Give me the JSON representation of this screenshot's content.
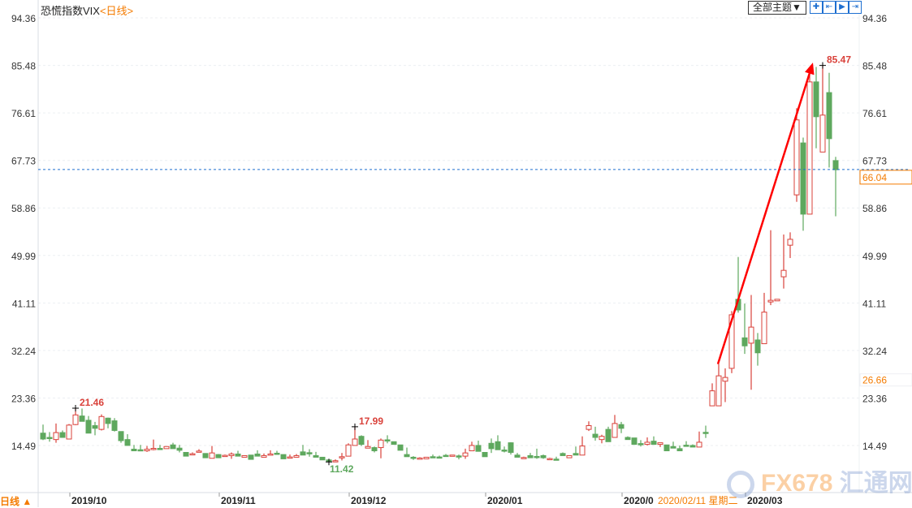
{
  "header": {
    "title": "恐慌指数VIX",
    "period": "<日线>",
    "theme_button": "全部主题▼",
    "tools": [
      {
        "icon": "crosshair-icon"
      },
      {
        "icon": "zoom-range-icon"
      },
      {
        "icon": "play-icon"
      },
      {
        "icon": "exit-icon"
      }
    ]
  },
  "footer": {
    "period_toggle": "日线 ▲",
    "crosshair_date": "2020/02/11 星期二"
  },
  "watermark": {
    "brand": "FX678",
    "name": "汇通网"
  },
  "colors": {
    "up": "#d9413a",
    "down": "#5ea85e",
    "last_price": "#f47b00",
    "dashed_line": "#1e6fd0",
    "arrow": "#ff0000"
  },
  "chart_data": {
    "type": "candlestick",
    "title": "恐慌指数VIX",
    "ylim": [
      11,
      94.36
    ],
    "y_ticks": [
      "94.36",
      "85.48",
      "76.61",
      "67.73",
      "58.86",
      "49.99",
      "41.11",
      "32.24",
      "23.36",
      "14.49"
    ],
    "x_ticks": [
      "2019/10",
      "2019/11",
      "2019/12",
      "2020/01",
      "2020/0",
      "2020/03"
    ],
    "last_price": "66.04",
    "crosshair_price": "26.66",
    "annotations": [
      {
        "label": "21.46",
        "candle": 5,
        "at": "high",
        "color": "#d9413a"
      },
      {
        "label": "17.99",
        "candle": 48,
        "at": "high",
        "color": "#d9413a"
      },
      {
        "label": "11.42",
        "candle": 44,
        "at": "low",
        "color": "#5ea85e"
      },
      {
        "label": "85.47",
        "candle": 120,
        "at": "high",
        "color": "#d9413a"
      }
    ],
    "trend_arrow": {
      "from": {
        "candle": 104,
        "value": 29.7
      },
      "to": {
        "candle": 118.5,
        "value": 86
      }
    },
    "ohlc": [
      [
        16.8,
        18.4,
        15.5,
        15.7
      ],
      [
        16.0,
        17.0,
        15.2,
        15.9
      ],
      [
        15.6,
        18.6,
        15.0,
        16.9
      ],
      [
        16.9,
        17.3,
        16.0,
        16.0
      ],
      [
        15.7,
        18.5,
        15.7,
        18.3
      ],
      [
        18.4,
        21.46,
        18.3,
        20.2
      ],
      [
        20.0,
        21.4,
        19.0,
        19.0
      ],
      [
        19.2,
        20.0,
        16.8,
        16.8
      ],
      [
        18.2,
        18.9,
        16.4,
        17.7
      ],
      [
        17.5,
        20.3,
        17.3,
        19.9
      ],
      [
        19.6,
        19.7,
        17.7,
        18.6
      ],
      [
        19.1,
        19.6,
        17.1,
        17.3
      ],
      [
        17.1,
        17.1,
        15.0,
        15.4
      ],
      [
        15.6,
        16.6,
        14.5,
        14.5
      ],
      [
        13.8,
        14.6,
        13.5,
        13.5
      ],
      [
        13.7,
        14.6,
        13.5,
        13.6
      ],
      [
        13.5,
        14.4,
        13.3,
        13.8
      ],
      [
        13.8,
        15.6,
        13.6,
        13.95
      ],
      [
        13.95,
        14.6,
        13.8,
        13.85
      ],
      [
        13.9,
        14.3,
        13.9,
        14.3
      ],
      [
        14.6,
        15.0,
        13.9,
        13.9
      ],
      [
        14.0,
        14.6,
        13.2,
        13.6
      ],
      [
        13.2,
        13.2,
        12.5,
        12.5
      ],
      [
        12.85,
        13.2,
        12.8,
        12.95
      ],
      [
        13.35,
        13.8,
        13.3,
        13.45
      ],
      [
        13.0,
        13.0,
        12.2,
        12.2
      ],
      [
        12.1,
        14.4,
        12.1,
        13.1
      ],
      [
        12.8,
        12.9,
        12.2,
        12.2
      ],
      [
        12.55,
        12.8,
        12.5,
        12.65
      ],
      [
        12.6,
        13.2,
        12.0,
        12.9
      ],
      [
        12.9,
        13.5,
        12.5,
        12.5
      ],
      [
        12.3,
        12.6,
        12.3,
        12.6
      ],
      [
        12.7,
        12.7,
        11.9,
        11.9
      ],
      [
        12.9,
        13.6,
        12.5,
        12.5
      ],
      [
        12.3,
        13.0,
        12.3,
        12.6
      ],
      [
        12.7,
        13.6,
        12.7,
        12.9
      ],
      [
        13.05,
        13.5,
        12.9,
        12.95
      ],
      [
        12.8,
        12.8,
        12.0,
        12.0
      ],
      [
        12.25,
        12.8,
        12.2,
        12.35
      ],
      [
        12.3,
        12.9,
        12.3,
        12.6
      ],
      [
        13.3,
        14.6,
        12.7,
        12.7
      ],
      [
        13.15,
        13.8,
        12.4,
        13.05
      ],
      [
        12.6,
        13.3,
        12.3,
        12.3
      ],
      [
        12.3,
        12.3,
        11.8,
        11.8
      ],
      [
        11.8,
        11.8,
        11.42,
        11.5
      ],
      [
        11.55,
        11.9,
        11.5,
        11.65
      ],
      [
        12.2,
        13.1,
        11.7,
        12.4
      ],
      [
        12.5,
        14.9,
        12.5,
        14.6
      ],
      [
        14.5,
        17.99,
        14.5,
        15.7
      ],
      [
        16.2,
        16.4,
        14.4,
        14.7
      ],
      [
        14.0,
        15.5,
        14.0,
        14.3
      ],
      [
        14.1,
        14.3,
        13.2,
        13.5
      ],
      [
        14.1,
        15.8,
        12.1,
        15.5
      ],
      [
        15.55,
        16.4,
        14.9,
        15.45
      ],
      [
        15.2,
        15.2,
        14.7,
        14.7
      ],
      [
        14.6,
        14.6,
        13.6,
        13.6
      ],
      [
        12.8,
        14.1,
        12.4,
        12.4
      ],
      [
        12.3,
        12.5,
        11.8,
        12.1
      ],
      [
        12.05,
        12.3,
        11.9,
        12.15
      ],
      [
        12.0,
        12.3,
        12.0,
        12.3
      ],
      [
        12.4,
        12.8,
        12.2,
        12.2
      ],
      [
        12.35,
        12.6,
        12.1,
        12.25
      ],
      [
        12.65,
        12.9,
        12.5,
        12.55
      ],
      [
        12.5,
        12.7,
        12.5,
        12.7
      ],
      [
        12.55,
        12.8,
        11.9,
        12.45
      ],
      [
        12.5,
        13.9,
        12.0,
        13.1
      ],
      [
        13.5,
        15.2,
        13.5,
        14.5
      ],
      [
        14.5,
        15.4,
        13.4,
        13.4
      ],
      [
        13.2,
        13.2,
        12.4,
        12.4
      ],
      [
        14.9,
        15.8,
        13.1,
        13.9
      ],
      [
        15.2,
        16.4,
        13.7,
        13.7
      ],
      [
        13.65,
        14.3,
        13.2,
        13.55
      ],
      [
        15.0,
        15.1,
        12.8,
        13.2
      ],
      [
        12.7,
        13.1,
        12.3,
        12.3
      ],
      [
        12.15,
        12.4,
        12.0,
        12.25
      ],
      [
        12.6,
        13.1,
        12.2,
        12.2
      ],
      [
        12.45,
        13.9,
        12.0,
        12.35
      ],
      [
        12.6,
        12.8,
        12.0,
        12.2
      ],
      [
        11.95,
        12.2,
        11.8,
        12.05
      ],
      [
        11.95,
        12.4,
        11.7,
        11.85
      ],
      [
        13.0,
        13.2,
        12.6,
        12.6
      ],
      [
        12.2,
        12.6,
        12.2,
        12.6
      ],
      [
        13.0,
        14.3,
        12.7,
        12.7
      ],
      [
        12.7,
        16.2,
        12.7,
        14.4
      ],
      [
        17.5,
        19.0,
        17.2,
        18.2
      ],
      [
        16.6,
        18.0,
        15.4,
        16.0
      ],
      [
        15.6,
        16.5,
        14.9,
        16.2
      ],
      [
        17.5,
        18.0,
        15.2,
        15.2
      ],
      [
        16.0,
        20.2,
        16.0,
        18.6
      ],
      [
        18.4,
        18.9,
        16.8,
        17.7
      ],
      [
        16.0,
        16.2,
        15.6,
        15.6
      ],
      [
        15.9,
        15.9,
        14.7,
        14.7
      ],
      [
        14.85,
        15.5,
        14.3,
        14.75
      ],
      [
        14.7,
        16.0,
        14.5,
        15.1
      ],
      [
        15.3,
        16.2,
        14.7,
        14.7
      ],
      [
        14.7,
        15.0,
        14.2,
        15.0
      ],
      [
        14.6,
        14.6,
        13.5,
        13.5
      ],
      [
        14.3,
        15.2,
        14.0,
        14.0
      ],
      [
        13.9,
        14.5,
        13.5,
        13.5
      ],
      [
        14.55,
        15.3,
        14.3,
        14.45
      ],
      [
        14.5,
        14.7,
        14.2,
        14.2
      ],
      [
        14.2,
        17.1,
        14.2,
        15.1
      ],
      [
        16.95,
        18.2,
        15.9,
        16.85
      ],
      [
        21.9,
        26.1,
        21.9,
        24.7
      ],
      [
        21.9,
        29.7,
        21.9,
        27.5
      ],
      [
        26.5,
        28.9,
        22.6,
        27.2
      ],
      [
        28.9,
        39.6,
        28.0,
        38.9
      ],
      [
        41.8,
        49.7,
        39.3,
        39.8
      ],
      [
        34.6,
        41.0,
        31.6,
        33.1
      ],
      [
        33.6,
        42.6,
        24.9,
        36.6
      ],
      [
        34.2,
        35.5,
        29.4,
        31.8
      ],
      [
        33.5,
        43.0,
        33.5,
        39.4
      ],
      [
        41.3,
        54.7,
        40.7,
        41.6
      ],
      [
        41.5,
        41.8,
        41.5,
        41.8
      ],
      [
        46.0,
        53.9,
        43.8,
        47.2
      ],
      [
        51.9,
        54.3,
        49.5,
        53.0
      ],
      [
        61.3,
        77.5,
        60.0,
        75.3
      ],
      [
        71.0,
        72.0,
        54.6,
        57.7
      ],
      [
        57.7,
        84.0,
        57.7,
        82.4
      ],
      [
        82.4,
        85.2,
        70.0,
        75.9
      ],
      [
        69.3,
        85.47,
        69.3,
        76.2
      ],
      [
        80.4,
        84.1,
        66.4,
        71.8
      ],
      [
        67.7,
        68.4,
        57.3,
        66.0
      ]
    ]
  }
}
